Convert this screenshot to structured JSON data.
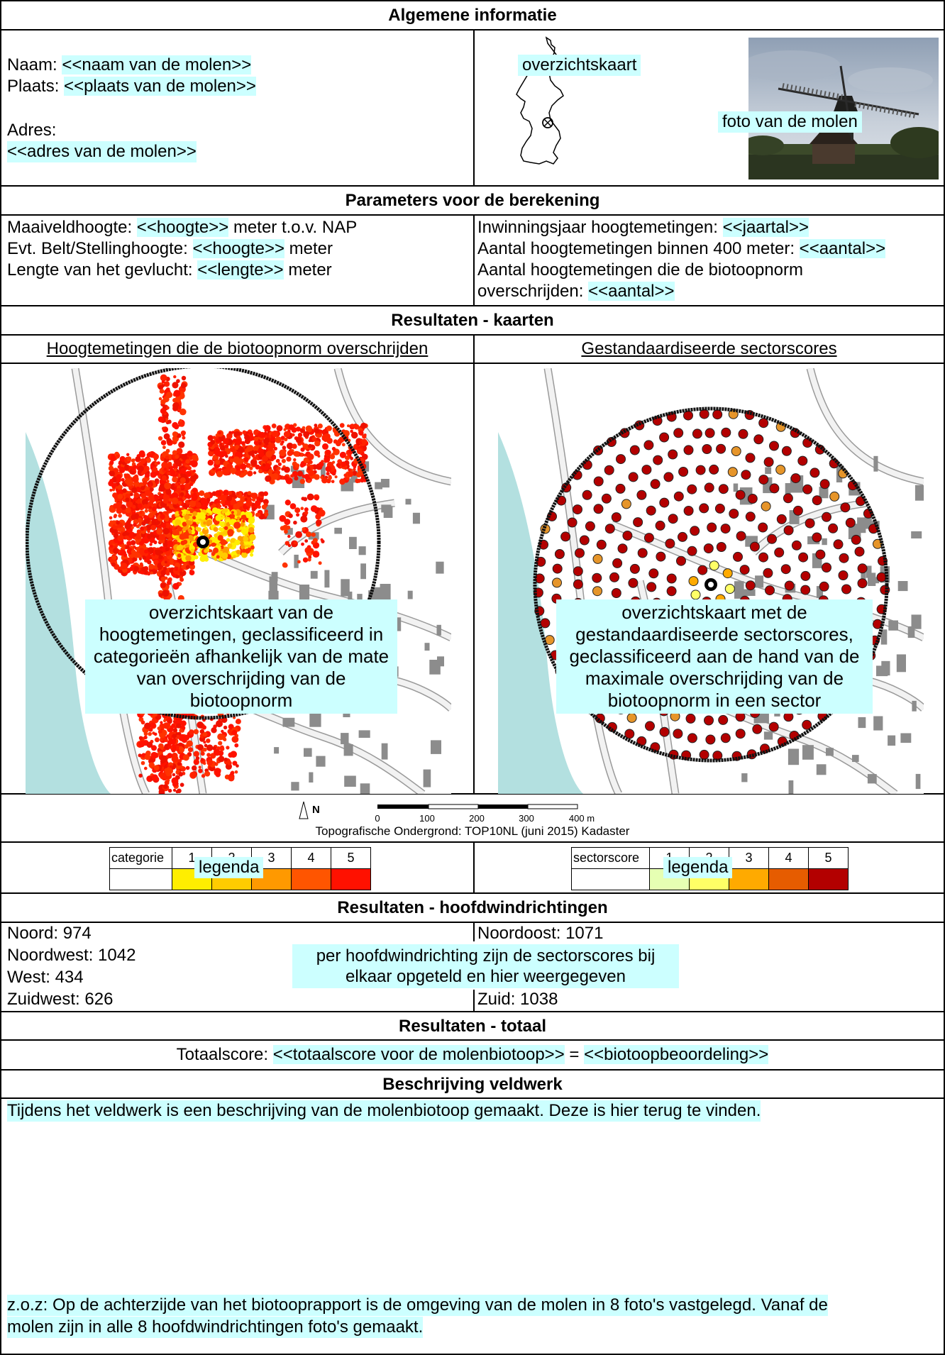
{
  "algemeen": {
    "header": "Algemene informatie",
    "naam_label": "Naam:",
    "naam_value": "<<naam van de molen>>",
    "plaats_label": "Plaats:",
    "plaats_value": "<<plaats van de molen>>",
    "adres_label": "Adres:",
    "adres_value": "<<adres van de molen>>",
    "overzichtskaart_label": "overzichtskaart",
    "foto_label": "foto van de molen"
  },
  "parameters": {
    "header": "Parameters voor de berekening",
    "maaiveld_label": "Maaiveldhoogte:",
    "maaiveld_value": "<<hoogte>>",
    "maaiveld_unit": "meter t.o.v. NAP",
    "belt_label": "Evt. Belt/Stellinghoogte:",
    "belt_value": "<<hoogte>>",
    "belt_unit": "meter",
    "gevlucht_label": "Lengte van het gevlucht:",
    "gevlucht_value": "<<lengte>>",
    "gevlucht_unit": "meter",
    "jaar_label": "Inwinningsjaar hoogtemetingen:",
    "jaar_value": "<<jaartal>>",
    "aantal_label": "Aantal hoogtemetingen binnen 400 meter:",
    "aantal_value": "<<aantal>>",
    "overschrijden_label_1": "Aantal hoogtemetingen die de biotoopnorm",
    "overschrijden_label_2": "overschrijden:",
    "overschrijden_value": "<<aantal>>"
  },
  "kaarten": {
    "header": "Resultaten - kaarten",
    "left_title": "Hoogtemetingen die de biotoopnorm overschrijden",
    "right_title": "Gestandaardiseerde sectorscores",
    "left_callout": [
      "overzichtskaart van de",
      "hoogtemetingen, geclassificeerd in",
      "categorieën afhankelijk van de mate",
      "van overschrijding van de",
      "biotoopnorm"
    ],
    "right_callout": [
      "overzichtskaart met de",
      "gestandaardiseerde sectorscores,",
      "geclassificeerd aan de hand van de",
      "maximale overschrijding van de",
      "biotoopnorm in een sector"
    ],
    "north_label": "N",
    "scale_ticks": [
      "0",
      "100",
      "200",
      "300",
      "400 m"
    ],
    "source": "Topografische Ondergrond: TOP10NL (juni 2015) Kadaster"
  },
  "legend_left": {
    "title": "categorie",
    "items": [
      "1",
      "2",
      "3",
      "4",
      "5"
    ],
    "colors": [
      "#ffee00",
      "#ffcc00",
      "#ff9900",
      "#ff5500",
      "#ff1100"
    ],
    "callout": "legenda"
  },
  "legend_right": {
    "title": "sectorscore",
    "items": [
      "1",
      "2",
      "3",
      "4",
      "5"
    ],
    "colors": [
      "#e6ffb3",
      "#ffff66",
      "#ffaa00",
      "#e65c00",
      "#b30000"
    ],
    "callout": "legenda"
  },
  "windrichtingen": {
    "header": "Resultaten - hoofdwindrichtingen",
    "noord": "Noord: 974",
    "noordwest": "Noordwest: 1042",
    "west": "West: 434",
    "zuidwest": "Zuidwest: 626",
    "noordoost": "Noordoost: 1071",
    "zuid": "Zuid: 1038",
    "callout_1": "per hoofdwindrichting zijn de sectorscores bij",
    "callout_2": "elkaar opgeteld en hier weergegeven"
  },
  "totaal": {
    "header": "Resultaten - totaal",
    "label": "Totaalscore:",
    "value": "<<totaalscore voor de molenbiotoop>>",
    "equals": "=",
    "beoordeling": "<<biotoopbeoordeling>>"
  },
  "veldwerk": {
    "header": "Beschrijving veldwerk",
    "intro": "Tijdens het veldwerk is een beschrijving van de molenbiotoop gemaakt. Deze is hier terug te vinden.",
    "zoz_1": "z.o.z: Op de achterzijde van het biotooprapport is de omgeving van de molen in 8 foto's vastgelegd. Vanaf de",
    "zoz_2": "molen zijn in alle 8 hoofdwindrichtingen foto's gemaakt."
  },
  "colors": {
    "highlight": "#ccffff",
    "water": "#b3e0e0",
    "road_fill": "#f2f2f2",
    "road_edge": "#9a9a9a",
    "building": "#8c8c8c"
  }
}
